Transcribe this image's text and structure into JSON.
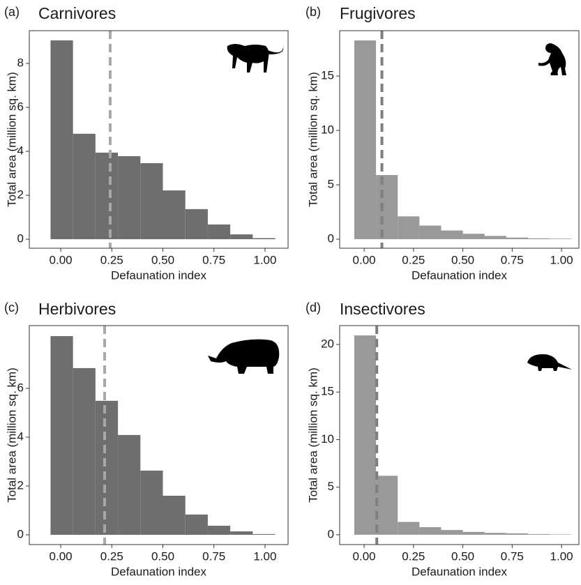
{
  "chart_data": [
    {
      "type": "histogram",
      "panel": "(a)",
      "title": "Carnivores",
      "x_label": "Defaunation index",
      "y_label": "Total area (million sq. km)",
      "bins": [
        -0.05,
        0.06,
        0.17,
        0.28,
        0.39,
        0.5,
        0.61,
        0.72,
        0.83,
        0.94,
        1.05
      ],
      "values": [
        9.05,
        4.8,
        3.94,
        3.78,
        3.46,
        2.22,
        1.37,
        0.67,
        0.22,
        0.05
      ],
      "color": "#6e6e6e",
      "reference_line": 0.242,
      "reference_color": "#a8a8a8",
      "xlim": [
        -0.154,
        1.113
      ],
      "ylim": [
        -0.41,
        9.49
      ],
      "xticks": [
        {
          "value": 0,
          "label": "0.00"
        },
        {
          "value": 0.25,
          "label": "0.25"
        },
        {
          "value": 0.5,
          "label": "0.50"
        },
        {
          "value": 0.75,
          "label": "0.75"
        },
        {
          "value": 1,
          "label": "1.00"
        }
      ],
      "yticks": [
        0,
        2,
        4,
        6,
        8
      ]
    },
    {
      "type": "histogram",
      "panel": "(b)",
      "title": "Frugivores",
      "x_label": "Defaunation index",
      "y_label": "Total area (million sq. km)",
      "bins": [
        -0.05,
        0.06,
        0.17,
        0.28,
        0.39,
        0.5,
        0.61,
        0.72,
        0.83,
        0.94,
        1.05
      ],
      "values": [
        18.27,
        5.9,
        2.1,
        1.25,
        0.8,
        0.5,
        0.3,
        0.15,
        0.08,
        0.05
      ],
      "color": "#999999",
      "reference_line": 0.09,
      "reference_color": "#7f7f7f",
      "xlim": [
        -0.124,
        1.088
      ],
      "ylim": [
        -0.83,
        19.17
      ],
      "xticks": [
        {
          "value": 0,
          "label": "0.00"
        },
        {
          "value": 0.25,
          "label": "0.25"
        },
        {
          "value": 0.5,
          "label": "0.50"
        },
        {
          "value": 0.75,
          "label": "0.75"
        },
        {
          "value": 1,
          "label": "1.00"
        }
      ],
      "yticks": [
        0,
        5,
        10,
        15
      ]
    },
    {
      "type": "histogram",
      "panel": "(c)",
      "title": "Herbivores",
      "x_label": "Defaunation index",
      "y_label": "Total area (million sq. km)",
      "bins": [
        -0.05,
        0.06,
        0.17,
        0.28,
        0.39,
        0.5,
        0.61,
        0.72,
        0.83,
        0.94,
        1.05
      ],
      "values": [
        8.14,
        6.83,
        5.49,
        4.09,
        2.63,
        1.6,
        0.83,
        0.37,
        0.14,
        0.03
      ],
      "color": "#6e6e6e",
      "reference_line": 0.215,
      "reference_color": "#a8a8a8",
      "xlim": [
        -0.154,
        1.113
      ],
      "ylim": [
        -0.4,
        8.57
      ],
      "xticks": [
        {
          "value": 0,
          "label": "0.00"
        },
        {
          "value": 0.25,
          "label": "0.25"
        },
        {
          "value": 0.5,
          "label": "0.50"
        },
        {
          "value": 0.75,
          "label": "0.75"
        },
        {
          "value": 1,
          "label": "1.00"
        }
      ],
      "yticks": [
        0,
        2,
        4,
        6
      ]
    },
    {
      "type": "histogram",
      "panel": "(d)",
      "title": "Insectivores",
      "x_label": "Defaunation index",
      "y_label": "Total area (million sq. km)",
      "bins": [
        -0.05,
        0.06,
        0.17,
        0.28,
        0.39,
        0.5,
        0.61,
        0.72,
        0.83,
        0.94,
        1.05
      ],
      "values": [
        20.95,
        6.2,
        1.35,
        0.8,
        0.5,
        0.3,
        0.2,
        0.15,
        0.08,
        0.04
      ],
      "color": "#999999",
      "reference_line": 0.064,
      "reference_color": "#7f7f7f",
      "xlim": [
        -0.124,
        1.088
      ],
      "ylim": [
        -1.03,
        21.98
      ],
      "xticks": [
        {
          "value": 0,
          "label": "0.00"
        },
        {
          "value": 0.25,
          "label": "0.25"
        },
        {
          "value": 0.5,
          "label": "0.50"
        },
        {
          "value": 0.75,
          "label": "0.75"
        },
        {
          "value": 1,
          "label": "1.00"
        }
      ],
      "yticks": [
        0,
        5,
        10,
        15,
        20
      ]
    }
  ]
}
